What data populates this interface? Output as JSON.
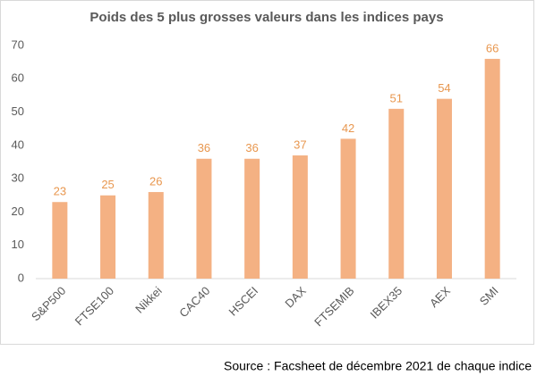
{
  "chart_data": {
    "type": "bar",
    "title": "Poids des 5 plus grosses valeurs dans les indices pays",
    "categories": [
      "S&P500",
      "FTSE100",
      "Nikkei",
      "CAC40",
      "HSCEI",
      "DAX",
      "FTSEMIB",
      "IBEX35",
      "AEX",
      "SMI"
    ],
    "values": [
      23,
      25,
      26,
      36,
      36,
      37,
      42,
      51,
      54,
      66
    ],
    "color": "#f4b183",
    "label_color": "#e8974f",
    "ylim": [
      0,
      70
    ],
    "yticks": [
      0,
      10,
      20,
      30,
      40,
      50,
      60,
      70
    ],
    "grid": false,
    "source": "Source : Facsheet de décembre 2021 de chaque indice"
  }
}
